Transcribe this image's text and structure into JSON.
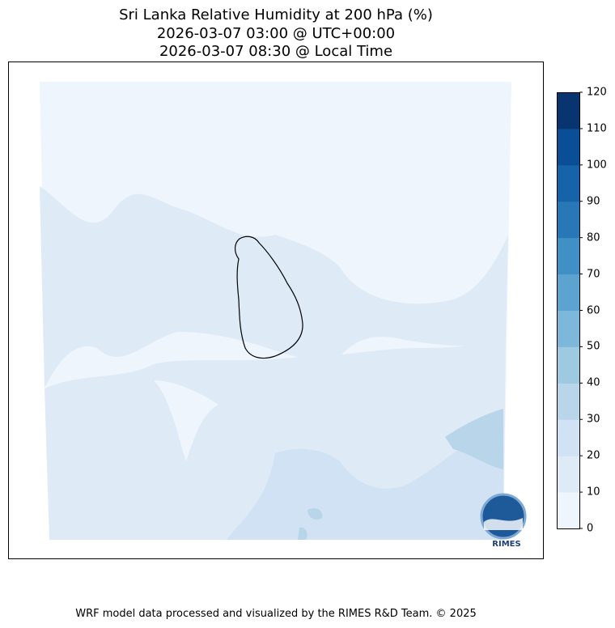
{
  "title": {
    "line1": "Sri Lanka Relative Humidity at 200 hPa (%)",
    "line2": "2026-03-07 03:00 @ UTC+00:00",
    "line3": "2026-03-07 08:30 @ Local Time"
  },
  "colorbar": {
    "levels": [
      0,
      10,
      20,
      30,
      40,
      50,
      60,
      70,
      80,
      90,
      100,
      110,
      120
    ],
    "tick_labels": [
      "0",
      "10",
      "20",
      "30",
      "40",
      "50",
      "60",
      "70",
      "80",
      "90",
      "100",
      "110",
      "120"
    ],
    "colors": [
      "#eff5fc",
      "#deebf7",
      "#d0e2f3",
      "#b8d5ea",
      "#9dc9e1",
      "#7db8da",
      "#5ca3d0",
      "#4090c5",
      "#2878b8",
      "#1763a9",
      "#0a4f95",
      "#08356f"
    ]
  },
  "logo": {
    "text": "RIMES"
  },
  "footer": "WRF model data processed and visualized by the RIMES R&D Team. © 2025"
}
